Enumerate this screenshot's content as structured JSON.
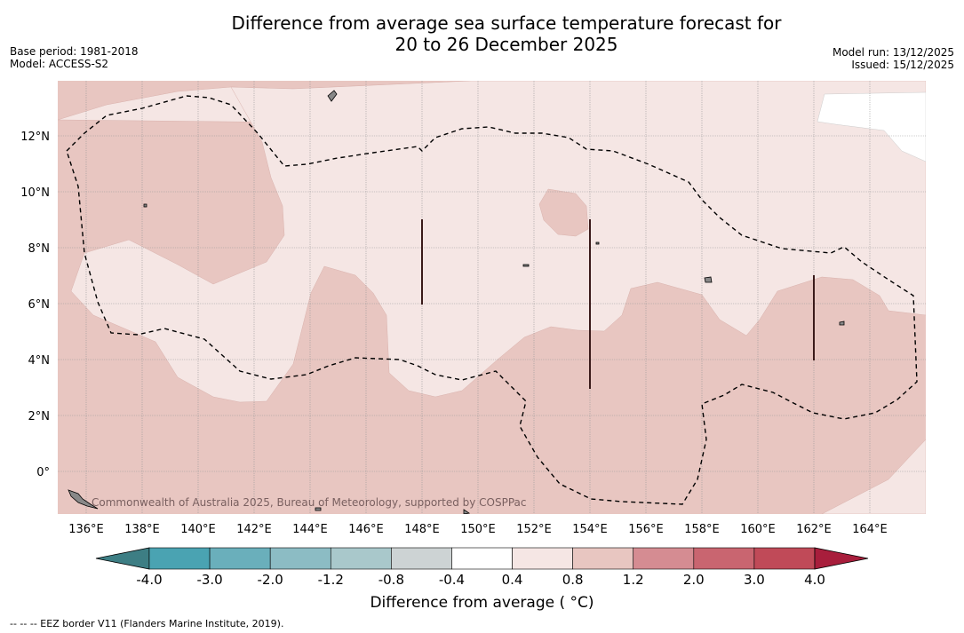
{
  "title_line1": "Difference from average sea surface temperature forecast for",
  "title_line2": "20 to 26 December 2025",
  "base_period": "Base period: 1981-2018",
  "model": "Model: ACCESS-S2",
  "model_run": "Model run: 13/12/2025",
  "issued": "Issued: 15/12/2025",
  "credit": "Commonwealth of Australia 2025, Bureau of Meteorology, supported by COSPPac",
  "lon_labels": [
    "136°E",
    "138°E",
    "140°E",
    "142°E",
    "144°E",
    "146°E",
    "148°E",
    "150°E",
    "152°E",
    "154°E",
    "156°E",
    "158°E",
    "160°E",
    "162°E",
    "164°E"
  ],
  "lat_labels": [
    "12°N",
    "10°N",
    "8°N",
    "6°N",
    "4°N",
    "2°N",
    "0°"
  ],
  "colorbar": {
    "ticks": [
      "-4.0",
      "-3.0",
      "-2.0",
      "-1.2",
      "-0.8",
      "-0.4",
      "0.4",
      "0.8",
      "1.2",
      "2.0",
      "3.0",
      "4.0"
    ],
    "colors": [
      "#4aa3b2",
      "#6aafbb",
      "#8cbcc4",
      "#a9c8cb",
      "#cdd3d4",
      "#ffffff",
      "#f5e6e4",
      "#e8c6c1",
      "#d58c92",
      "#c96570",
      "#c04a58"
    ],
    "low_color": "#3d7e84",
    "high_color": "#a81e3c",
    "label": "Difference from average ( °C)"
  },
  "legend_text": "--  --  -- EEZ border V11 (Flanders Marine Institute, 2019).",
  "colors": {
    "anomaly_0_4_to_0_8": "#f5e6e4",
    "anomaly_0_8_to_1_2": "#e8c6c1",
    "land": "#888888"
  }
}
